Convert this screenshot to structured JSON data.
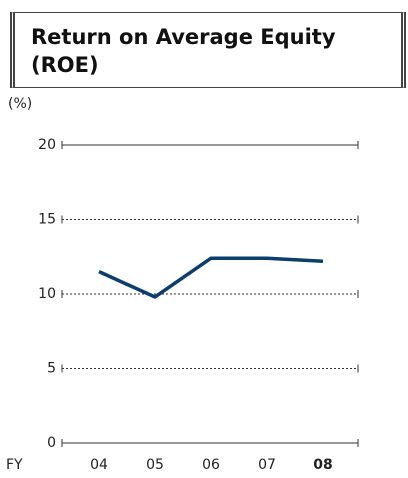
{
  "chart_data": {
    "type": "line",
    "title": "Return on Average Equity (ROE)",
    "ylabel": "(%)",
    "xlabel": "FY",
    "categories": [
      "04",
      "05",
      "06",
      "07",
      "08"
    ],
    "series": [
      {
        "name": "ROE",
        "color": "#0b3d6e",
        "values": [
          11.5,
          9.8,
          12.4,
          12.4,
          12.2
        ]
      }
    ],
    "ylim": [
      0,
      20
    ],
    "yticks": [
      0,
      5,
      10,
      15,
      20
    ],
    "grid": true
  }
}
